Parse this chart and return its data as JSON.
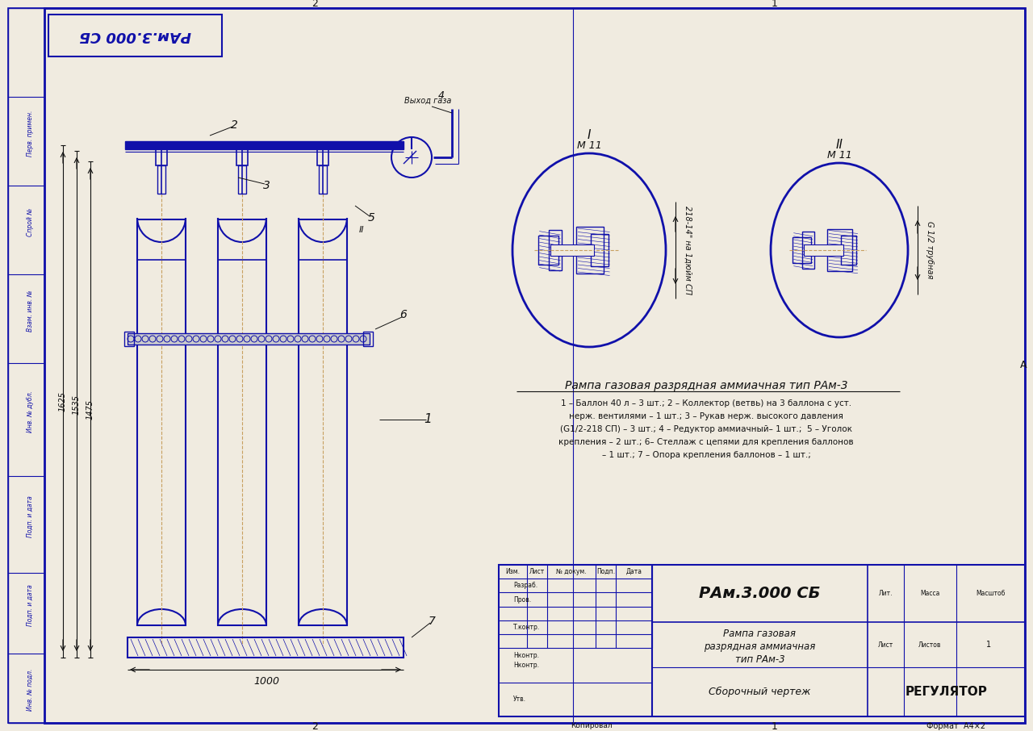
{
  "bg_color": "#f0ebe0",
  "blue": "#1010aa",
  "orange": "#c8a060",
  "black": "#111111",
  "title_box": "РАм.3.000 СБ",
  "drawing_title": "Рампа газовая разрядная аммиачная тип РАм-3",
  "description_lines": [
    "1 – Баллон 40 л – 3 шт.; 2 – Коллектор (ветвь) на 3 баллона с уст.",
    "нерж. вентилями – 1 шт.; 3 – Рукав нерж. высокого давления",
    "(G1/2-218 СП) – 3 шт.; 4 – Редуктор аммиачный– 1 шт.;  5 – Уголок",
    "крепления – 2 шт.; 6– Стеллаж с цепями для крепления баллонов",
    "– 1 шт.; 7 – Опора крепления баллонов – 1 шт.;"
  ],
  "stamp_title": "РАм.3.000 СБ",
  "stamp_subtitle1": "Рампа газовая",
  "stamp_subtitle2": "разрядная аммиачная",
  "stamp_subtitle3": "тип РАм-3",
  "stamp_bottom": "Сборочный чертеж",
  "stamp_right": "РЕГУЛЯТОР",
  "stamp_format": "Формат  А4×2",
  "stamp_copied": "Копировал",
  "detail_I_thread": "М 11",
  "detail_II_thread": "М 11",
  "detail_I_dim": "218-14\" на 1дюйм СП",
  "detail_II_dim": "G 1/2 трубная",
  "label_vykhod": "Выход газа",
  "dim_1625": "1625",
  "dim_1535": "1535",
  "dim_1475": "1475",
  "dim_1000": "1000",
  "side_labels": [
    "Перв. примен.",
    "Спрой №",
    "Взам. инв. №",
    "Инв. № дубл.",
    "Подп. и дата",
    "Подп. и дата",
    "Инв. № подл."
  ]
}
